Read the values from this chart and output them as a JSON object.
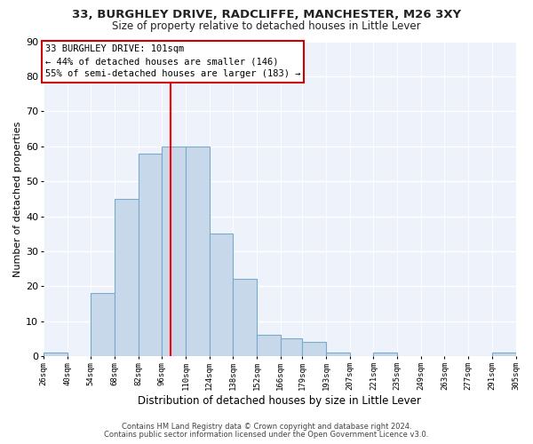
{
  "title": "33, BURGHLEY DRIVE, RADCLIFFE, MANCHESTER, M26 3XY",
  "subtitle": "Size of property relative to detached houses in Little Lever",
  "xlabel": "Distribution of detached houses by size in Little Lever",
  "ylabel": "Number of detached properties",
  "bar_color": "#c8d8eb",
  "bar_edge_color": "#7aaac8",
  "background_color": "#eef2fb",
  "axes_face_color": "#eef2fb",
  "grid_color": "#ffffff",
  "bins": [
    26,
    40,
    54,
    68,
    82,
    96,
    110,
    124,
    138,
    152,
    166,
    179,
    193,
    207,
    221,
    235,
    249,
    263,
    277,
    291,
    305
  ],
  "heights": [
    1,
    0,
    18,
    45,
    58,
    60,
    60,
    35,
    22,
    6,
    5,
    4,
    1,
    0,
    1,
    0,
    0,
    0,
    0,
    1
  ],
  "redline_x": 101,
  "ylim": [
    0,
    90
  ],
  "yticks": [
    0,
    10,
    20,
    30,
    40,
    50,
    60,
    70,
    80,
    90
  ],
  "annotation_line1": "33 BURGHLEY DRIVE: 101sqm",
  "annotation_line2": "← 44% of detached houses are smaller (146)",
  "annotation_line3": "55% of semi-detached houses are larger (183) →",
  "annotation_box_color": "#ffffff",
  "annotation_box_edge": "#cc0000",
  "footer1": "Contains HM Land Registry data © Crown copyright and database right 2024.",
  "footer2": "Contains public sector information licensed under the Open Government Licence v3.0.",
  "tick_labels": [
    "26sqm",
    "40sqm",
    "54sqm",
    "68sqm",
    "82sqm",
    "96sqm",
    "110sqm",
    "124sqm",
    "138sqm",
    "152sqm",
    "166sqm",
    "179sqm",
    "193sqm",
    "207sqm",
    "221sqm",
    "235sqm",
    "249sqm",
    "263sqm",
    "277sqm",
    "291sqm",
    "305sqm"
  ],
  "title_fontsize": 9.5,
  "subtitle_fontsize": 8.5,
  "ylabel_fontsize": 8,
  "xlabel_fontsize": 8.5,
  "footer_fontsize": 6.0,
  "annotation_fontsize": 7.5,
  "ytick_fontsize": 8,
  "xtick_fontsize": 6.5
}
